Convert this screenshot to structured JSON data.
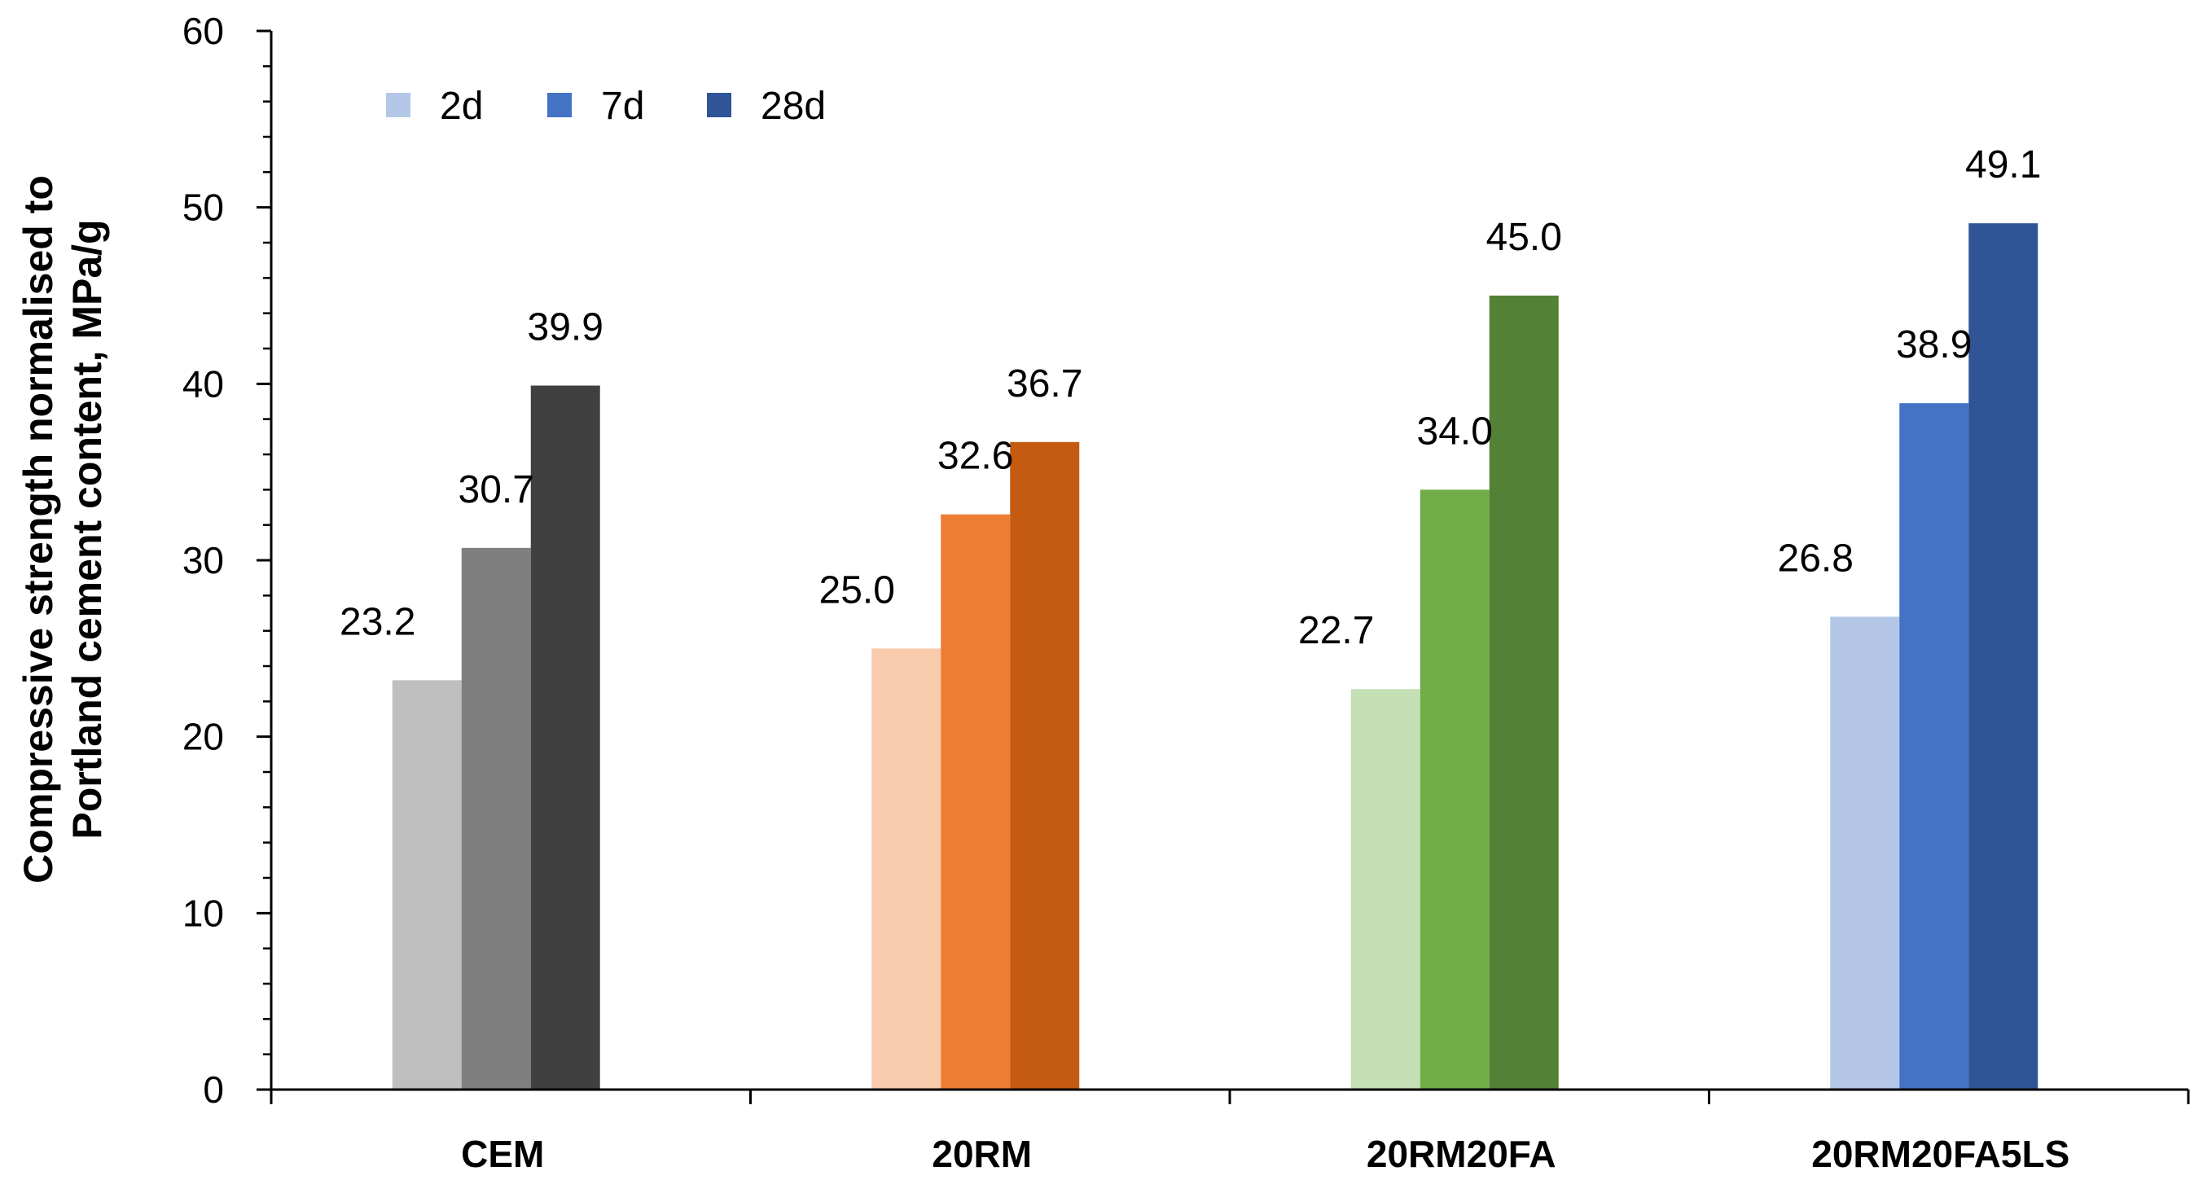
{
  "chart_data": {
    "type": "bar",
    "title": "",
    "xlabel": "",
    "ylabel_lines": [
      "Compressive strength normalised to",
      "Portland cement content, MPa/g"
    ],
    "ylim": [
      0,
      60
    ],
    "yticks": [
      0,
      10,
      20,
      30,
      40,
      50,
      60
    ],
    "ytick_labels": [
      "0",
      "10",
      "20",
      "30",
      "40",
      "50",
      "60"
    ],
    "grid": false,
    "legend_position": "top-left",
    "legend": [
      "2d",
      "7d",
      "28d"
    ],
    "categories": [
      "CEM",
      "20RM",
      "20RM20FA",
      "20RM20FA5LS"
    ],
    "series": [
      {
        "name": "2d",
        "values": [
          23.2,
          25.0,
          22.7,
          26.8
        ],
        "labels": [
          "23.2",
          "25.0",
          "22.7",
          "26.8"
        ]
      },
      {
        "name": "7d",
        "values": [
          30.7,
          32.6,
          34.0,
          38.9
        ],
        "labels": [
          "30.7",
          "32.6",
          "34.0",
          "38.9"
        ]
      },
      {
        "name": "28d",
        "values": [
          39.9,
          36.7,
          45.0,
          49.1
        ],
        "labels": [
          "39.9",
          "36.7",
          "45.0",
          "49.1"
        ]
      }
    ],
    "colors": [
      [
        "#bfbfbf",
        "#7f7f7f",
        "#404040"
      ],
      [
        "#f8cbad",
        "#ed7d31",
        "#c55a11"
      ],
      [
        "#c5e0b4",
        "#70ad47",
        "#538135"
      ],
      [
        "#b4c7e7",
        "#4472c4",
        "#2f5597"
      ]
    ],
    "legend_colors": [
      "#b4c7e7",
      "#4472c4",
      "#2f5597"
    ]
  }
}
